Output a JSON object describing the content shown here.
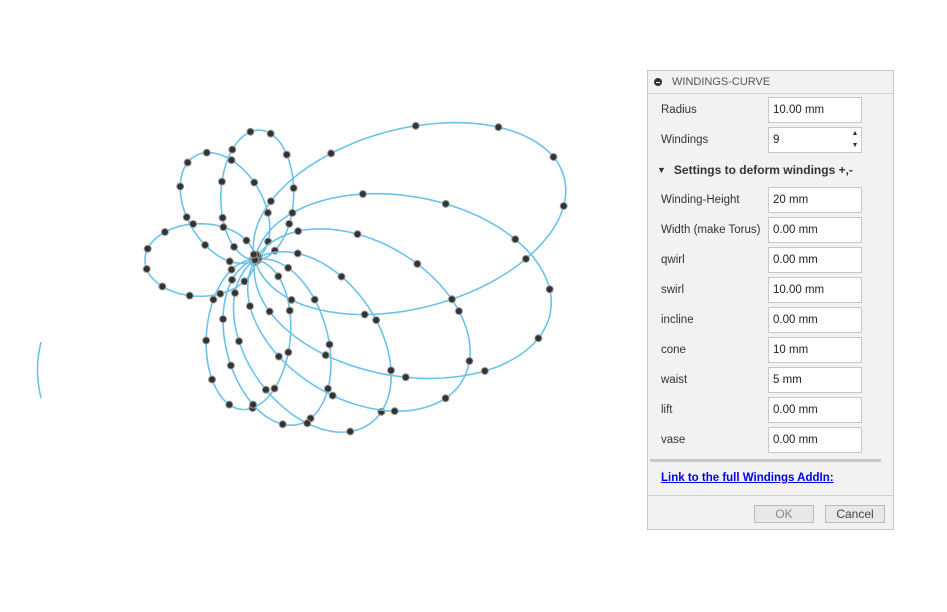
{
  "viewport": {
    "curve_color": "#6cc3ea",
    "point_color": "#333333"
  },
  "dialog": {
    "title": "WINDINGS-CURVE",
    "fields": [
      {
        "label": "Radius",
        "value": "10.00 mm"
      },
      {
        "label": "Windings",
        "value": "9"
      }
    ],
    "section_title": "Settings to deform windings +,-",
    "deform_fields": [
      {
        "label": "Winding-Height",
        "value": "20 mm"
      },
      {
        "label": "Width (make Torus)",
        "value": "0.00 mm"
      },
      {
        "label": "qwirl",
        "value": "0.00 mm"
      },
      {
        "label": "swirl",
        "value": "10.00 mm"
      },
      {
        "label": "incline",
        "value": "0.00 mm"
      },
      {
        "label": "cone",
        "value": "10 mm"
      },
      {
        "label": "waist",
        "value": "5 mm"
      },
      {
        "label": "lift",
        "value": "0.00 mm"
      },
      {
        "label": "vase",
        "value": "0.00 mm"
      }
    ],
    "link_text": "Link to the full Windings AddIn:",
    "ok_label": "OK",
    "cancel_label": "Cancel"
  }
}
